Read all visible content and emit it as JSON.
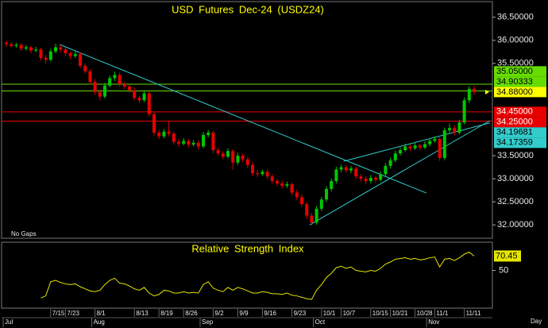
{
  "chart_data": {
    "type": "candlestick",
    "title": "USD Futures Dec-24 (USDZ24)",
    "note": "No Gaps",
    "x_unit_label": "Day",
    "up_color": "#00c800",
    "down_color": "#e80000",
    "ylim": [
      31.71,
      36.84
    ],
    "yticks": [
      {
        "value": 36.5,
        "label": "36.50000"
      },
      {
        "value": 36.0,
        "label": "36.00000"
      },
      {
        "value": 35.5,
        "label": "35.50000"
      },
      {
        "value": 33.5,
        "label": "33.50000"
      },
      {
        "value": 33.0,
        "label": "33.00000"
      },
      {
        "value": 32.5,
        "label": "32.50000"
      },
      {
        "value": 32.0,
        "label": "32.00000"
      }
    ],
    "categories": [
      null,
      null,
      null,
      null,
      null,
      null,
      null,
      null,
      null,
      "7/15",
      null,
      null,
      "7/23",
      null,
      null,
      null,
      null,
      null,
      "8/1",
      null,
      null,
      null,
      null,
      null,
      null,
      null,
      "8/13",
      null,
      null,
      null,
      null,
      "8/19",
      null,
      null,
      null,
      null,
      "8/26",
      null,
      null,
      null,
      null,
      null,
      "9/2",
      null,
      null,
      null,
      null,
      "9/9",
      null,
      null,
      null,
      null,
      "9/16",
      null,
      null,
      null,
      null,
      null,
      "9/23",
      null,
      null,
      null,
      null,
      null,
      "10/1",
      null,
      null,
      null,
      "10/7",
      null,
      null,
      null,
      null,
      null,
      "10/15",
      null,
      null,
      null,
      "10/21",
      null,
      null,
      null,
      null,
      "10/28",
      null,
      null,
      null,
      "11/1",
      null,
      null,
      null,
      null,
      null,
      "11/11",
      null,
      null
    ],
    "months": [
      {
        "value": 0,
        "label": "Jul"
      },
      {
        "value": 18,
        "label": "Aug"
      },
      {
        "value": 40,
        "label": "Sep"
      },
      {
        "value": 63,
        "label": "Oct"
      },
      {
        "value": 86,
        "label": "Nov"
      }
    ],
    "ohlc": [
      [
        35.95,
        36.0,
        35.86,
        35.92
      ],
      [
        35.92,
        35.96,
        35.84,
        35.88
      ],
      [
        35.88,
        35.95,
        35.84,
        35.9
      ],
      [
        35.9,
        35.94,
        35.77,
        35.82
      ],
      [
        35.82,
        35.9,
        35.78,
        35.85
      ],
      [
        35.85,
        35.88,
        35.72,
        35.78
      ],
      [
        35.78,
        35.86,
        35.74,
        35.8
      ],
      [
        35.8,
        35.84,
        35.56,
        35.62
      ],
      [
        35.62,
        35.68,
        35.5,
        35.58
      ],
      [
        35.58,
        35.82,
        35.54,
        35.76
      ],
      [
        35.76,
        35.93,
        35.72,
        35.85
      ],
      [
        35.85,
        35.9,
        35.74,
        35.8
      ],
      [
        35.8,
        35.84,
        35.66,
        35.72
      ],
      [
        35.72,
        35.76,
        35.6,
        35.66
      ],
      [
        35.66,
        35.76,
        35.62,
        35.7
      ],
      [
        35.7,
        35.74,
        35.4,
        35.45
      ],
      [
        35.45,
        35.5,
        35.28,
        35.33
      ],
      [
        35.33,
        35.38,
        35.04,
        35.1
      ],
      [
        35.1,
        35.16,
        34.82,
        34.88
      ],
      [
        34.88,
        34.94,
        34.7,
        34.78
      ],
      [
        34.78,
        35.08,
        34.74,
        35.02
      ],
      [
        35.02,
        35.24,
        34.98,
        35.18
      ],
      [
        35.18,
        35.32,
        35.12,
        35.25
      ],
      [
        35.25,
        35.3,
        35.0,
        35.05
      ],
      [
        35.05,
        35.1,
        34.94,
        35.0
      ],
      [
        35.0,
        35.04,
        34.86,
        34.92
      ],
      [
        34.92,
        34.98,
        34.7,
        34.75
      ],
      [
        34.75,
        34.8,
        34.64,
        34.7
      ],
      [
        34.7,
        34.92,
        34.66,
        34.85
      ],
      [
        34.85,
        34.9,
        34.34,
        34.4
      ],
      [
        34.4,
        34.45,
        33.94,
        34.0
      ],
      [
        34.0,
        34.06,
        33.86,
        33.92
      ],
      [
        33.92,
        34.08,
        33.88,
        34.02
      ],
      [
        34.02,
        34.25,
        33.92,
        33.98
      ],
      [
        33.98,
        34.02,
        33.74,
        33.8
      ],
      [
        33.8,
        33.86,
        33.7,
        33.76
      ],
      [
        33.76,
        33.88,
        33.72,
        33.82
      ],
      [
        33.82,
        33.86,
        33.68,
        33.74
      ],
      [
        33.74,
        33.84,
        33.7,
        33.78
      ],
      [
        33.78,
        33.82,
        33.64,
        33.7
      ],
      [
        33.7,
        34.02,
        33.66,
        33.95
      ],
      [
        33.95,
        34.06,
        33.9,
        34.0
      ],
      [
        34.0,
        34.04,
        33.56,
        33.62
      ],
      [
        33.62,
        33.68,
        33.5,
        33.55
      ],
      [
        33.55,
        33.6,
        33.42,
        33.48
      ],
      [
        33.48,
        33.66,
        33.44,
        33.6
      ],
      [
        33.6,
        33.64,
        33.2,
        33.35
      ],
      [
        33.35,
        33.56,
        33.3,
        33.5
      ],
      [
        33.5,
        33.55,
        33.36,
        33.42
      ],
      [
        33.42,
        33.48,
        33.24,
        33.3
      ],
      [
        33.3,
        33.36,
        33.06,
        33.12
      ],
      [
        33.12,
        33.18,
        33.04,
        33.1
      ],
      [
        33.1,
        33.2,
        33.06,
        33.15
      ],
      [
        33.15,
        33.2,
        32.99,
        33.05
      ],
      [
        33.05,
        33.1,
        32.89,
        32.95
      ],
      [
        32.95,
        33.0,
        32.84,
        32.9
      ],
      [
        32.9,
        32.96,
        32.79,
        32.85
      ],
      [
        32.85,
        32.94,
        32.8,
        32.88
      ],
      [
        32.88,
        32.92,
        32.64,
        32.7
      ],
      [
        32.7,
        32.76,
        32.54,
        32.6
      ],
      [
        32.6,
        32.66,
        32.39,
        32.45
      ],
      [
        32.45,
        32.5,
        32.14,
        32.2
      ],
      [
        32.2,
        32.26,
        31.99,
        32.05
      ],
      [
        32.05,
        32.41,
        32.0,
        32.35
      ],
      [
        32.35,
        32.61,
        32.3,
        32.55
      ],
      [
        32.55,
        32.84,
        32.5,
        32.78
      ],
      [
        32.78,
        33.01,
        32.72,
        32.95
      ],
      [
        32.95,
        33.26,
        32.9,
        33.2
      ],
      [
        33.2,
        33.31,
        33.14,
        33.25
      ],
      [
        33.25,
        33.3,
        33.12,
        33.18
      ],
      [
        33.18,
        33.28,
        33.12,
        33.22
      ],
      [
        33.22,
        33.26,
        32.99,
        33.05
      ],
      [
        33.05,
        33.1,
        32.94,
        33.0
      ],
      [
        33.0,
        33.05,
        32.89,
        32.95
      ],
      [
        32.95,
        33.08,
        32.9,
        33.02
      ],
      [
        33.02,
        33.06,
        32.92,
        32.98
      ],
      [
        32.98,
        33.16,
        32.94,
        33.1
      ],
      [
        33.1,
        33.34,
        33.06,
        33.28
      ],
      [
        33.28,
        33.46,
        33.22,
        33.4
      ],
      [
        33.4,
        33.61,
        33.36,
        33.55
      ],
      [
        33.55,
        33.68,
        33.5,
        33.62
      ],
      [
        33.62,
        33.76,
        33.58,
        33.7
      ],
      [
        33.7,
        33.74,
        33.6,
        33.66
      ],
      [
        33.66,
        33.78,
        33.62,
        33.72
      ],
      [
        33.72,
        33.76,
        33.62,
        33.68
      ],
      [
        33.68,
        33.81,
        33.64,
        33.75
      ],
      [
        33.75,
        33.88,
        33.7,
        33.82
      ],
      [
        33.82,
        33.92,
        33.78,
        33.86
      ],
      [
        33.86,
        33.9,
        33.39,
        33.45
      ],
      [
        33.45,
        34.11,
        33.4,
        34.05
      ],
      [
        34.05,
        34.2,
        34.0,
        34.1
      ],
      [
        34.1,
        34.16,
        33.94,
        34.0
      ],
      [
        34.0,
        34.28,
        33.96,
        34.22
      ],
      [
        34.22,
        34.76,
        34.18,
        34.7
      ],
      [
        34.7,
        35.01,
        34.64,
        34.95
      ],
      [
        34.95,
        35.02,
        34.82,
        34.88
      ]
    ],
    "levels": [
      {
        "value": 35.05,
        "label": "35.05000",
        "color": "#66dd00",
        "label_color": "#000"
      },
      {
        "value": 34.90333,
        "label": "34.90333",
        "color": "#66dd00",
        "label_color": "#000"
      },
      {
        "value": 34.45,
        "label": "34.45000",
        "color": "#e80000",
        "label_color": "#fff"
      },
      {
        "value": 34.25,
        "label": "34.25000",
        "color": "#e80000",
        "label_color": "#fff"
      }
    ],
    "last": {
      "value": 34.88,
      "label": "34.88000",
      "color": "#ffff00",
      "label_color": "#000"
    },
    "trendlines": [
      {
        "start": [
          10.8,
          35.91
        ],
        "end": [
          85.3,
          32.69
        ],
        "color": "#33cccc"
      },
      {
        "start": [
          61.6,
          32.0
        ],
        "end": [
          98.2,
          34.26
        ],
        "color": "#33cccc",
        "value": 34.17359,
        "label": "34.17359",
        "label_color": "#000"
      },
      {
        "start": [
          68.5,
          33.38
        ],
        "end": [
          98.2,
          34.21
        ],
        "color": "#33cccc",
        "value": 34.19681,
        "label": "34.19681",
        "label_color": "#000"
      }
    ],
    "rsi": {
      "title": "Relative Strength Index",
      "color": "#e6e600",
      "ylim": [
        0,
        90
      ],
      "yticks": [
        50
      ],
      "last": {
        "value": 70.45,
        "label": "70.45"
      },
      "values": [
        null,
        null,
        null,
        null,
        null,
        null,
        null,
        11,
        14,
        34,
        36,
        33,
        31,
        30,
        31,
        27,
        24,
        21,
        20,
        22,
        30,
        36,
        39,
        32,
        31,
        28,
        24,
        22,
        26,
        18,
        14,
        16,
        22,
        21,
        18,
        18,
        20,
        18,
        19,
        18,
        30,
        34,
        25,
        22,
        20,
        26,
        22,
        26,
        24,
        21,
        18,
        18,
        20,
        19,
        17,
        17,
        16,
        18,
        15,
        14,
        12,
        10,
        9,
        22,
        30,
        40,
        46,
        54,
        56,
        53,
        55,
        50,
        49,
        48,
        50,
        49,
        53,
        59,
        62,
        66,
        67,
        68,
        66,
        67,
        65,
        66,
        68,
        69,
        55,
        66,
        67,
        64,
        68,
        73,
        76,
        70.45
      ]
    }
  }
}
